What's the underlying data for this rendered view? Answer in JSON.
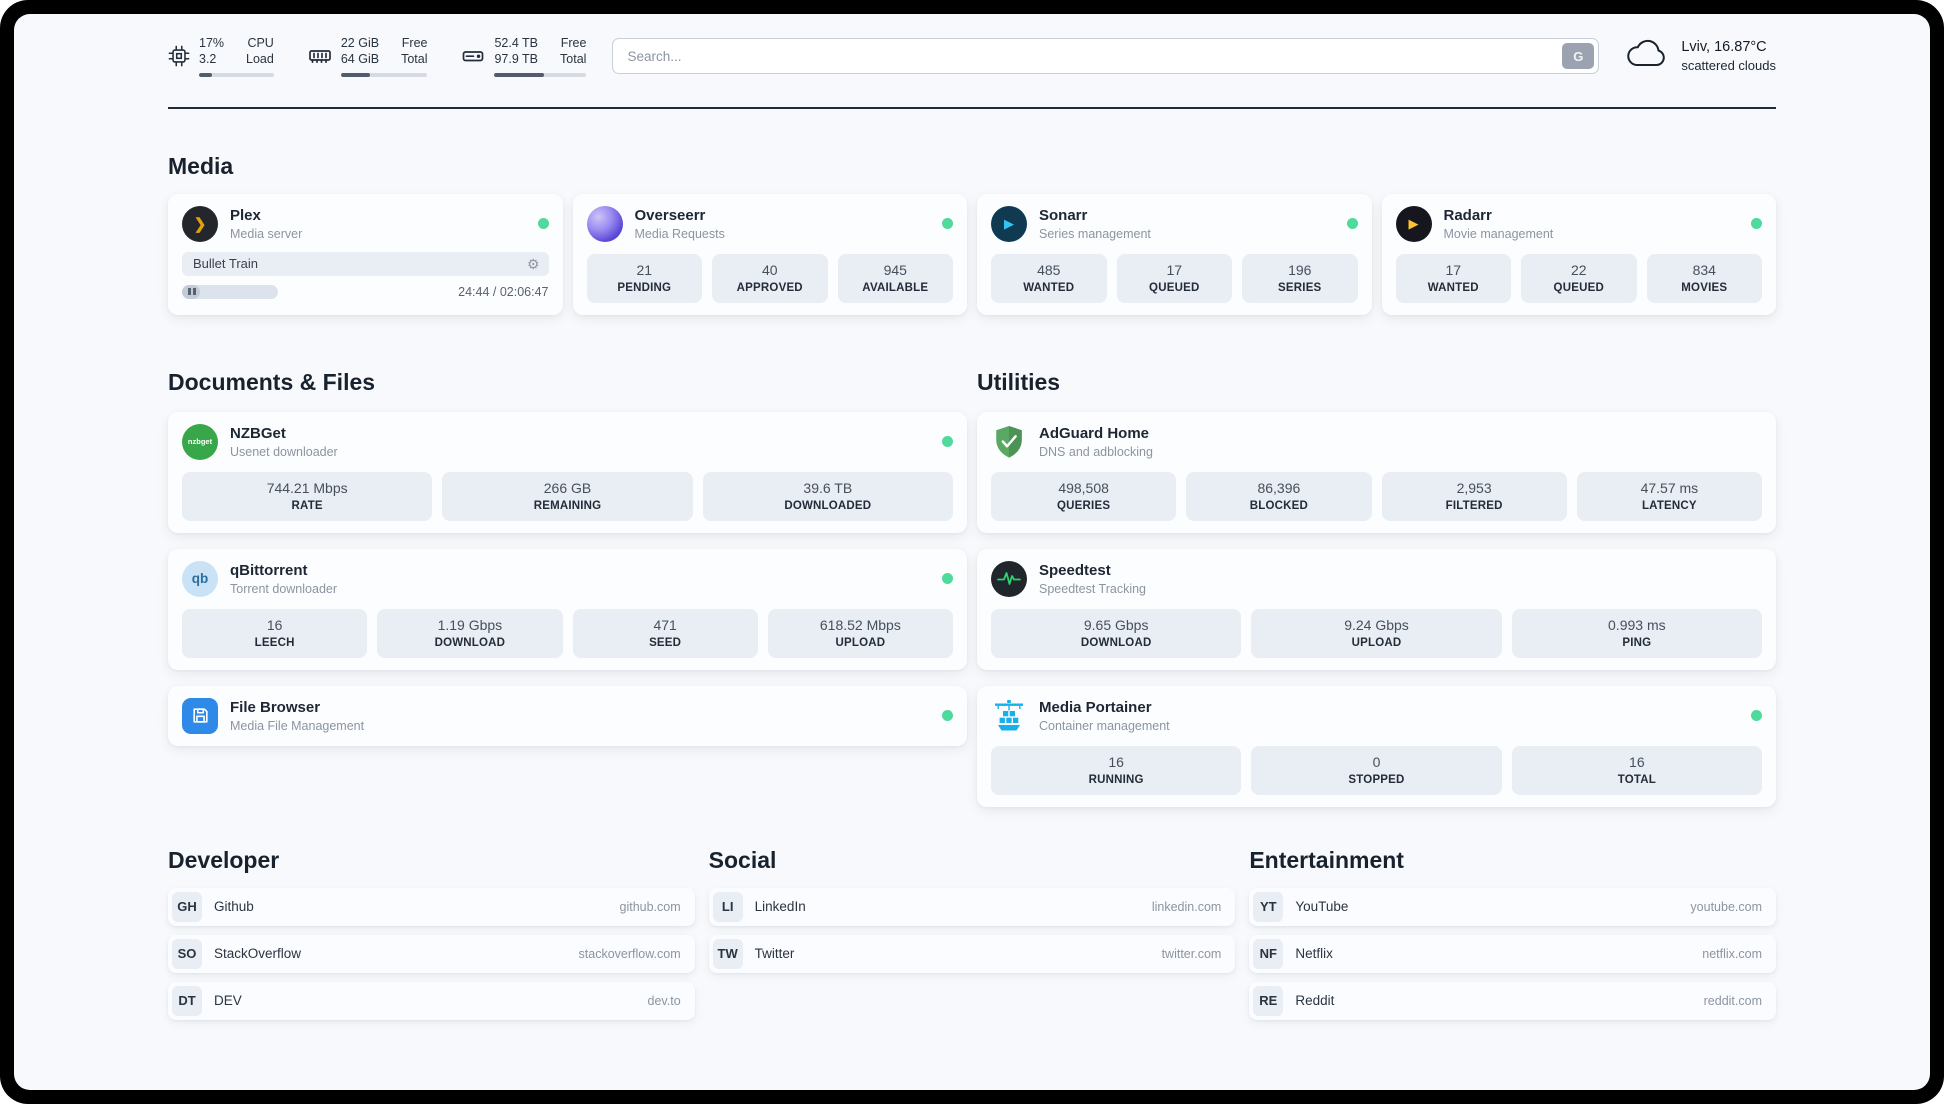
{
  "colors": {
    "status_online": "#4fd99a",
    "plex_accent": "#e5a00d",
    "sonarr_blue": "#35c5f4",
    "radarr_yellow": "#ffc230",
    "nzbget_green": "#37a74a",
    "qbittorrent_blue": "#2c6e9e",
    "filebrowser_blue": "#2f89e8",
    "adguard_green": "#5aa963",
    "speedtest_green": "#2dd36f",
    "portainer_blue": "#18b0e8"
  },
  "header": {
    "cpu": {
      "value_top": "17%",
      "label_top": "CPU",
      "value_bottom": "3.2",
      "label_bottom": "Load",
      "percent": 17
    },
    "ram": {
      "value_top": "22 GiB",
      "label_top": "Free",
      "value_bottom": "64 GiB",
      "label_bottom": "Total",
      "percent": 34
    },
    "disk": {
      "value_top": "52.4 TB",
      "label_top": "Free",
      "value_bottom": "97.9 TB",
      "label_bottom": "Total",
      "percent": 54
    },
    "search": {
      "placeholder": "Search...",
      "button_label": "G"
    },
    "weather": {
      "location": "Lviv, 16.87°C",
      "condition": "scattered clouds"
    }
  },
  "icons": {
    "plex_glyph": "❯",
    "sonarr_glyph": "▶",
    "radarr_glyph": "▶",
    "nzbget_text": "nzbget",
    "qbittorrent_text": "qb",
    "gear_glyph": "⚙"
  },
  "sections": {
    "media": {
      "title": "Media",
      "plex": {
        "name": "Plex",
        "subtitle": "Media server",
        "now_playing": "Bullet Train",
        "time": "24:44 / 02:06:47",
        "progress_percent": 19
      },
      "overseerr": {
        "name": "Overseerr",
        "subtitle": "Media Requests",
        "stats": [
          {
            "value": "21",
            "label": "PENDING"
          },
          {
            "value": "40",
            "label": "APPROVED"
          },
          {
            "value": "945",
            "label": "AVAILABLE"
          }
        ]
      },
      "sonarr": {
        "name": "Sonarr",
        "subtitle": "Series management",
        "stats": [
          {
            "value": "485",
            "label": "WANTED"
          },
          {
            "value": "17",
            "label": "QUEUED"
          },
          {
            "value": "196",
            "label": "SERIES"
          }
        ]
      },
      "radarr": {
        "name": "Radarr",
        "subtitle": "Movie management",
        "stats": [
          {
            "value": "17",
            "label": "WANTED"
          },
          {
            "value": "22",
            "label": "QUEUED"
          },
          {
            "value": "834",
            "label": "MOVIES"
          }
        ]
      }
    },
    "documents": {
      "title": "Documents & Files",
      "nzbget": {
        "name": "NZBGet",
        "subtitle": "Usenet downloader",
        "stats": [
          {
            "value": "744.21 Mbps",
            "label": "RATE"
          },
          {
            "value": "266 GB",
            "label": "REMAINING"
          },
          {
            "value": "39.6 TB",
            "label": "DOWNLOADED"
          }
        ]
      },
      "qbittorrent": {
        "name": "qBittorrent",
        "subtitle": "Torrent downloader",
        "stats": [
          {
            "value": "16",
            "label": "LEECH"
          },
          {
            "value": "1.19 Gbps",
            "label": "DOWNLOAD"
          },
          {
            "value": "471",
            "label": "SEED"
          },
          {
            "value": "618.52 Mbps",
            "label": "UPLOAD"
          }
        ]
      },
      "filebrowser": {
        "name": "File Browser",
        "subtitle": "Media File Management"
      }
    },
    "utilities": {
      "title": "Utilities",
      "adguard": {
        "name": "AdGuard Home",
        "subtitle": "DNS and adblocking",
        "stats": [
          {
            "value": "498,508",
            "label": "QUERIES"
          },
          {
            "value": "86,396",
            "label": "BLOCKED"
          },
          {
            "value": "2,953",
            "label": "FILTERED"
          },
          {
            "value": "47.57 ms",
            "label": "LATENCY"
          }
        ]
      },
      "speedtest": {
        "name": "Speedtest",
        "subtitle": "Speedtest Tracking",
        "stats": [
          {
            "value": "9.65 Gbps",
            "label": "DOWNLOAD"
          },
          {
            "value": "9.24 Gbps",
            "label": "UPLOAD"
          },
          {
            "value": "0.993 ms",
            "label": "PING"
          }
        ]
      },
      "portainer": {
        "name": "Media Portainer",
        "subtitle": "Container management",
        "stats": [
          {
            "value": "16",
            "label": "RUNNING"
          },
          {
            "value": "0",
            "label": "STOPPED"
          },
          {
            "value": "16",
            "label": "TOTAL"
          }
        ]
      }
    },
    "bookmarks": {
      "developer": {
        "title": "Developer",
        "items": [
          {
            "abbr": "GH",
            "name": "Github",
            "url": "github.com"
          },
          {
            "abbr": "SO",
            "name": "StackOverflow",
            "url": "stackoverflow.com"
          },
          {
            "abbr": "DT",
            "name": "DEV",
            "url": "dev.to"
          }
        ]
      },
      "social": {
        "title": "Social",
        "items": [
          {
            "abbr": "LI",
            "name": "LinkedIn",
            "url": "linkedin.com"
          },
          {
            "abbr": "TW",
            "name": "Twitter",
            "url": "twitter.com"
          }
        ]
      },
      "entertainment": {
        "title": "Entertainment",
        "items": [
          {
            "abbr": "YT",
            "name": "YouTube",
            "url": "youtube.com"
          },
          {
            "abbr": "NF",
            "name": "Netflix",
            "url": "netflix.com"
          },
          {
            "abbr": "RE",
            "name": "Reddit",
            "url": "reddit.com"
          }
        ]
      }
    }
  }
}
